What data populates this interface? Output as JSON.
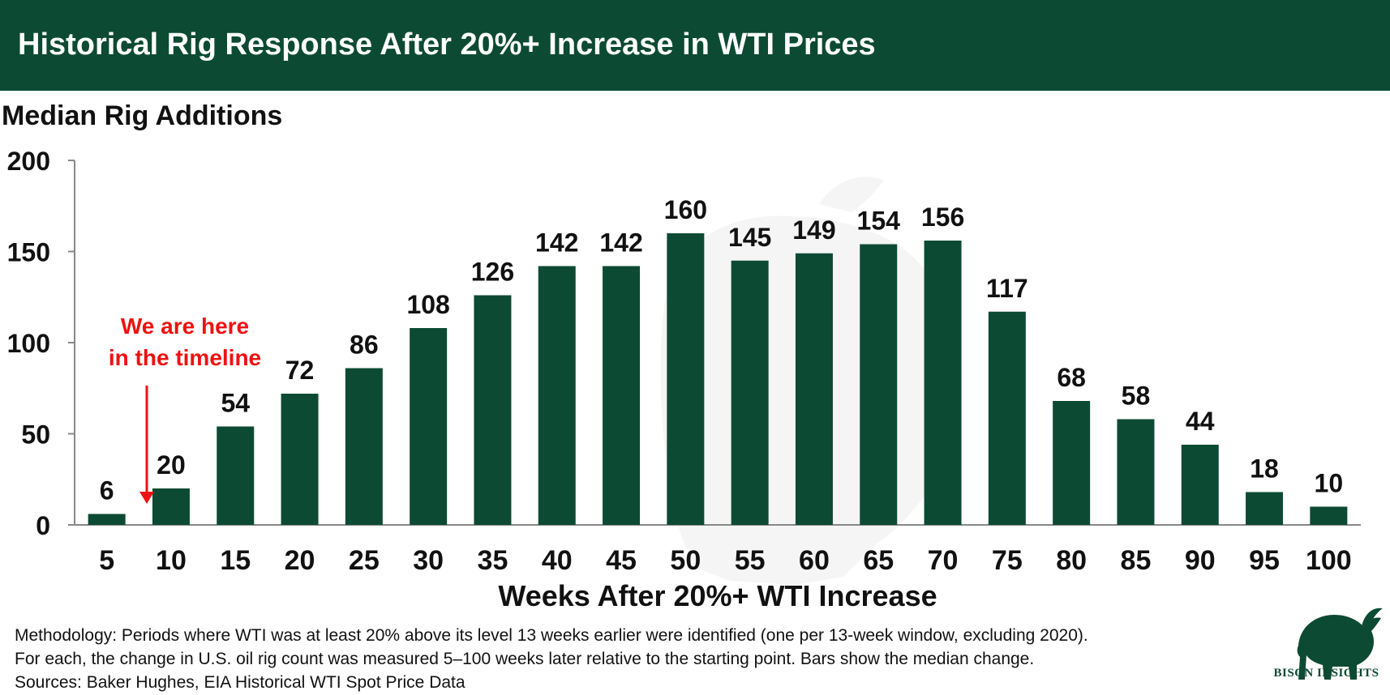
{
  "header": {
    "title": "Historical Rig Response After 20%+ Increase in WTI Prices"
  },
  "chart_data": {
    "type": "bar",
    "title": "Historical Rig Response After 20%+ Increase in WTI Prices",
    "ylabel": "Median Rig Additions",
    "xlabel": "Weeks After 20%+ WTI Increase",
    "categories": [
      "5",
      "10",
      "15",
      "20",
      "25",
      "30",
      "35",
      "40",
      "45",
      "50",
      "55",
      "60",
      "65",
      "70",
      "75",
      "80",
      "85",
      "90",
      "95",
      "100"
    ],
    "values": [
      6,
      20,
      54,
      72,
      86,
      108,
      126,
      142,
      142,
      160,
      145,
      149,
      154,
      156,
      117,
      68,
      58,
      44,
      18,
      10
    ],
    "ylim": [
      0,
      200
    ],
    "yticks": [
      0,
      50,
      100,
      150,
      200
    ],
    "grid": false,
    "annotation": {
      "lines": [
        "We are here",
        "in the timeline"
      ],
      "color": "#ee1111"
    }
  },
  "colors": {
    "bar": "#0d4a33",
    "header_bg": "#0d4a33",
    "annotation": "#ee1111",
    "text": "#111111"
  },
  "footnote": {
    "lines": [
      "Methodology: Periods where WTI was at least 20% above its level 13 weeks earlier were identified (one per 13-week window, excluding 2020).",
      "For each, the change in U.S. oil rig count was measured 5–100 weeks later relative to the starting point. Bars show the median change.",
      "Sources: Baker Hughes, EIA Historical WTI Spot Price Data"
    ]
  },
  "logo": {
    "icon": "bison-icon",
    "text": "BISON INSIGHTS"
  }
}
